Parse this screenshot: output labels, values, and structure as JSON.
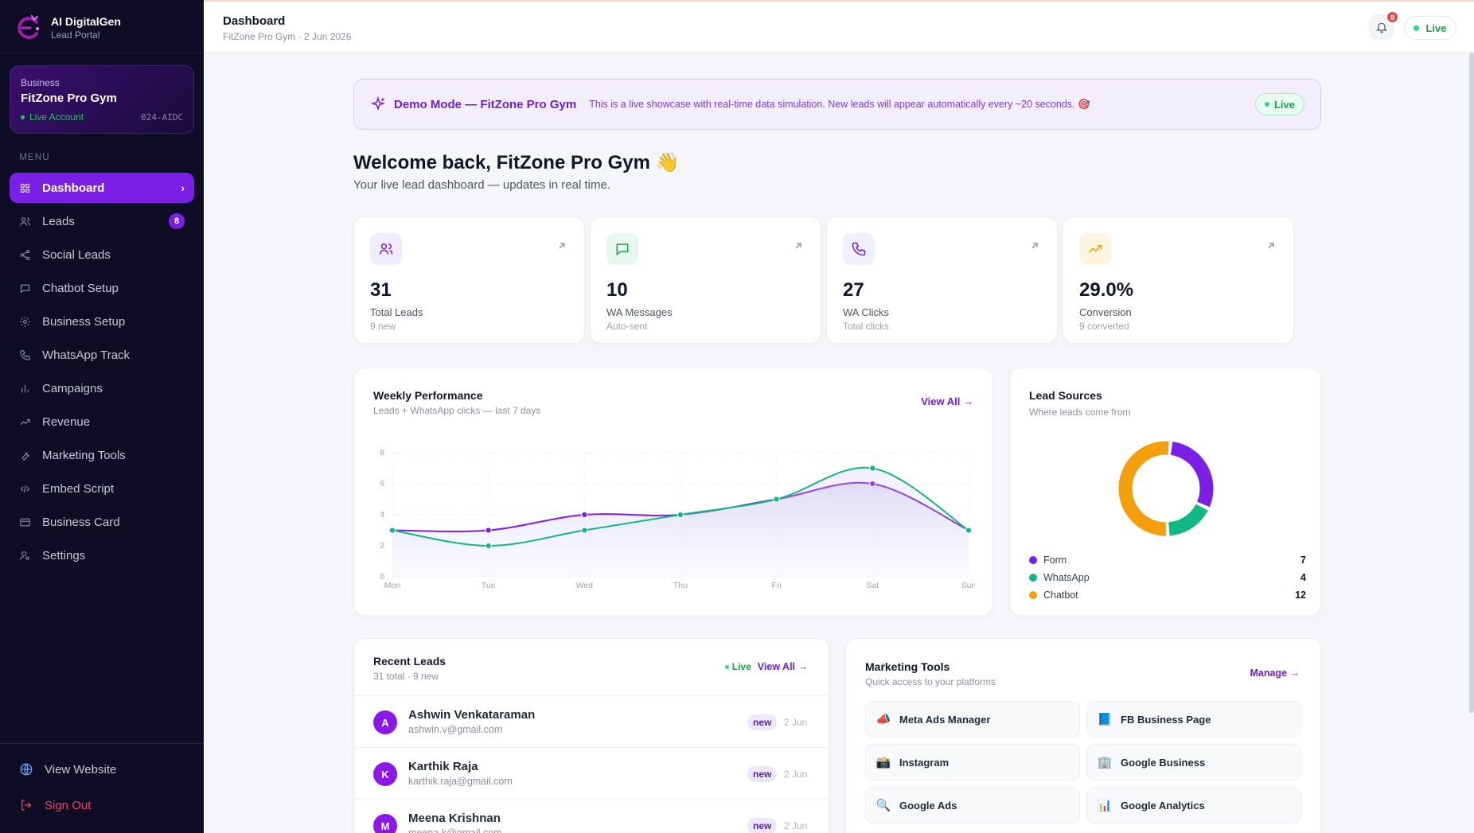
{
  "brand": {
    "name": "AI DigitalGen",
    "sub": "Lead Portal"
  },
  "business": {
    "label": "Business",
    "name": "FitZone Pro Gym",
    "status": "Live Account",
    "code": "024-AIDC"
  },
  "menu_label": "MENU",
  "nav": [
    {
      "label": "Dashboard",
      "icon": "grid-icon",
      "active": true
    },
    {
      "label": "Leads",
      "icon": "users-icon",
      "badge": "8"
    },
    {
      "label": "Social Leads",
      "icon": "share-icon"
    },
    {
      "label": "Chatbot Setup",
      "icon": "chat-icon"
    },
    {
      "label": "Business Setup",
      "icon": "gear-icon"
    },
    {
      "label": "WhatsApp Track",
      "icon": "phone-icon"
    },
    {
      "label": "Campaigns",
      "icon": "bar-chart-icon"
    },
    {
      "label": "Revenue",
      "icon": "trend-icon"
    },
    {
      "label": "Marketing Tools",
      "icon": "wrench-icon"
    },
    {
      "label": "Embed Script",
      "icon": "code-icon"
    },
    {
      "label": "Business Card",
      "icon": "card-icon"
    },
    {
      "label": "Settings",
      "icon": "user-settings-icon"
    }
  ],
  "footer": {
    "view_website": "View Website",
    "sign_out": "Sign Out"
  },
  "topbar": {
    "title": "Dashboard",
    "subtitle": "FitZone Pro Gym · 2 Jun 2026",
    "notifications": "8",
    "live": "Live"
  },
  "demo": {
    "title": "Demo Mode — FitZone Pro Gym",
    "text": "This is a live showcase with real-time data simulation. New leads will appear automatically every ~20 seconds. 🎯",
    "live": "Live"
  },
  "welcome": {
    "title": "Welcome back, FitZone Pro Gym 👋",
    "subtitle": "Your live lead dashboard — updates in real time."
  },
  "stats": [
    {
      "value": "31",
      "label": "Total Leads",
      "sub": "9 new",
      "icon": "users-icon",
      "bg": "#f0ebfd",
      "color": "#7c1fe6"
    },
    {
      "value": "10",
      "label": "WA Messages",
      "sub": "Auto-sent",
      "icon": "chat-icon",
      "bg": "#e7f8ef",
      "color": "#16a34a"
    },
    {
      "value": "27",
      "label": "WA Clicks",
      "sub": "Total clicks",
      "icon": "phone-icon",
      "bg": "#eef0fb",
      "color": "#6d1fd8"
    },
    {
      "value": "29.0%",
      "label": "Conversion",
      "sub": "9 converted",
      "icon": "trend-icon",
      "bg": "#fff4e0",
      "color": "#f59e0b"
    }
  ],
  "weekly": {
    "title": "Weekly Performance",
    "subtitle": "Leads + WhatsApp clicks — last 7 days",
    "link": "View All →"
  },
  "chart_data": {
    "type": "line",
    "x": [
      "Mon",
      "Tue",
      "Wed",
      "Thu",
      "Fri",
      "Sat",
      "Sun"
    ],
    "series": [
      {
        "values": [
          3,
          3,
          4,
          4,
          5,
          6,
          3
        ],
        "color": "#7c1fe6"
      },
      {
        "values": [
          3,
          2,
          3,
          4,
          5,
          7,
          3
        ],
        "color": "#10b981"
      }
    ],
    "yticks": [
      0,
      2,
      4,
      6,
      8
    ],
    "ylim": [
      0,
      8
    ],
    "grid": true
  },
  "sources": {
    "title": "Lead Sources",
    "subtitle": "Where leads come from",
    "items": [
      {
        "name": "Form",
        "value": 7,
        "color": "#7c1fe6"
      },
      {
        "name": "WhatsApp",
        "value": 4,
        "color": "#10b981"
      },
      {
        "name": "Chatbot",
        "value": 12,
        "color": "#f59e0b"
      }
    ]
  },
  "recent": {
    "title": "Recent Leads",
    "subtitle": "31 total · 9 new",
    "live": "Live",
    "link": "View All →",
    "leads": [
      {
        "initial": "A",
        "name": "Ashwin Venkataraman",
        "email": "ashwin.v@gmail.com",
        "badge": "new",
        "date": "2 Jun"
      },
      {
        "initial": "K",
        "name": "Karthik Raja",
        "email": "karthik.raja@gmail.com",
        "badge": "new",
        "date": "2 Jun"
      },
      {
        "initial": "M",
        "name": "Meena Krishnan",
        "email": "meena.k@gmail.com",
        "badge": "new",
        "date": "2 Jun"
      }
    ]
  },
  "marketing": {
    "title": "Marketing Tools",
    "subtitle": "Quick access to your platforms",
    "link": "Manage →",
    "tools": [
      {
        "label": "Meta Ads Manager",
        "icon": "megaphone-icon",
        "glyph": "📣"
      },
      {
        "label": "FB Business Page",
        "icon": "facebook-page-icon",
        "glyph": "📘"
      },
      {
        "label": "Instagram",
        "icon": "camera-icon",
        "glyph": "📸"
      },
      {
        "label": "Google Business",
        "icon": "building-icon",
        "glyph": "🏢"
      },
      {
        "label": "Google Ads",
        "icon": "search-icon",
        "glyph": "🔍"
      },
      {
        "label": "Google Analytics",
        "icon": "analytics-icon",
        "glyph": "📊"
      }
    ]
  }
}
